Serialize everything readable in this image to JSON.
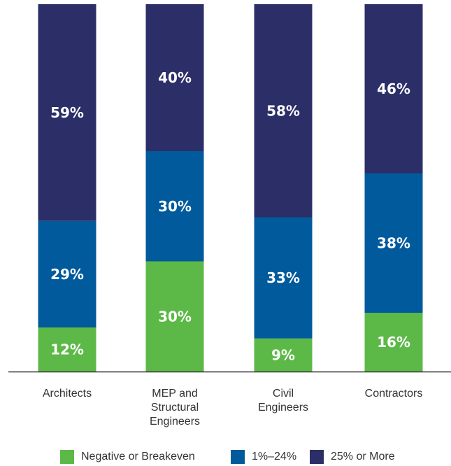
{
  "chart_data": {
    "type": "bar",
    "stacked": true,
    "percent": true,
    "categories": [
      "Architects",
      "MEP and Structural Engineers",
      "Civil Engineers",
      "Contractors"
    ],
    "category_label_lines": [
      [
        "Architects"
      ],
      [
        "MEP and",
        "Structural",
        "Engineers"
      ],
      [
        "Civil",
        "Engineers"
      ],
      [
        "Contractors"
      ]
    ],
    "series": [
      {
        "name": "Negative or Breakeven",
        "color": "#5cb947",
        "values": [
          12,
          30,
          9,
          16
        ],
        "labels": [
          "12%",
          "30%",
          "9%",
          "16%"
        ]
      },
      {
        "name": "1%–24%",
        "color": "#005a9c",
        "values": [
          29,
          30,
          33,
          38
        ],
        "labels": [
          "29%",
          "30%",
          "33%",
          "38%"
        ]
      },
      {
        "name": "25% or More",
        "color": "#2c2e68",
        "values": [
          59,
          40,
          58,
          46
        ],
        "labels": [
          "59%",
          "40%",
          "58%",
          "46%"
        ]
      }
    ],
    "ylim": [
      0,
      100
    ],
    "title": "",
    "xlabel": "",
    "ylabel": "",
    "grid": false,
    "legend_position": "bottom"
  }
}
